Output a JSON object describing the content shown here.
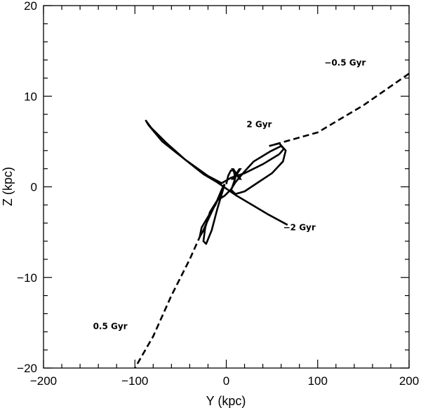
{
  "chart_data": {
    "type": "line",
    "title": "",
    "xlabel": "Y (kpc)",
    "ylabel": "Z (kpc)",
    "xlim": [
      -200,
      200
    ],
    "ylim": [
      -20,
      20
    ],
    "xticks": [
      -200,
      -100,
      0,
      100,
      200
    ],
    "yticks": [
      -20,
      -10,
      0,
      10,
      20
    ],
    "xtick_labels": [
      "−200",
      "−100",
      "0",
      "100",
      "200"
    ],
    "ytick_labels": [
      "−20",
      "−10",
      "0",
      "10",
      "20"
    ],
    "grid": false,
    "series": [
      {
        "style": "dashed",
        "x": [
          200,
          150,
          100,
          75,
          47
        ],
        "y": [
          12.5,
          9.0,
          6.0,
          5.3,
          4.5
        ]
      },
      {
        "style": "solid",
        "x": [
          47,
          58,
          65,
          62,
          50,
          35,
          20,
          10,
          5,
          10,
          20,
          30,
          48,
          60,
          63,
          58
        ],
        "y": [
          4.5,
          4.8,
          4.0,
          2.8,
          1.5,
          0.5,
          -0.5,
          -0.8,
          -0.3,
          0.5,
          1.7,
          2.8,
          3.9,
          4.5,
          4.2,
          3.6
        ]
      },
      {
        "style": "solid",
        "x": [
          58,
          40,
          20,
          5,
          -5,
          -20,
          -45,
          -70,
          -85,
          -88,
          -82,
          -65,
          -45,
          -25,
          -10,
          0,
          10,
          25,
          45,
          67
        ],
        "y": [
          3.6,
          2.5,
          1.5,
          1.0,
          0.4,
          1.2,
          3.0,
          5.0,
          6.8,
          7.3,
          6.5,
          4.8,
          3.0,
          1.4,
          0.5,
          -0.2,
          -0.9,
          -1.8,
          -3.0,
          -4.2
        ]
      },
      {
        "style": "solid",
        "x": [
          0,
          2,
          5,
          8,
          10,
          6,
          -2,
          -10,
          -18,
          -23,
          -25,
          -22,
          -16,
          -10,
          -5,
          -2,
          -5,
          -12,
          -20,
          -27,
          -29,
          -26,
          -18,
          -10,
          -5,
          -2
        ],
        "y": [
          0.3,
          1.2,
          1.8,
          1.8,
          1.0,
          -0.2,
          -1.0,
          -1.5,
          -2.8,
          -4.5,
          -6.0,
          -6.3,
          -4.8,
          -2.5,
          -0.8,
          0.2,
          -0.5,
          -2.0,
          -3.3,
          -4.5,
          -5.5,
          -5.0,
          -3.2,
          -1.5,
          -0.3,
          0.3
        ]
      },
      {
        "style": "dashed",
        "x": [
          -28,
          -40,
          -60,
          -80,
          -100
        ],
        "y": [
          -5.3,
          -8.0,
          -12.0,
          -16.5,
          -20.0
        ]
      }
    ],
    "annotations": [
      {
        "text": "−0.5 Gyr",
        "x": 130,
        "y": 13.7
      },
      {
        "text": "2 Gyr",
        "x": 36,
        "y": 6.9
      },
      {
        "text": "−2 Gyr",
        "x": 80,
        "y": -4.5
      },
      {
        "text": "0.5 Gyr",
        "x": -127,
        "y": -15.4
      },
      {
        "text": "X",
        "x": 11,
        "y": 1.4,
        "kind": "marker"
      }
    ]
  }
}
